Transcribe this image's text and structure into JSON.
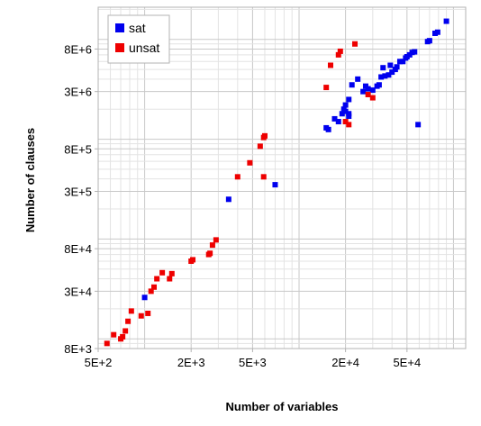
{
  "chart_data": {
    "type": "scatter",
    "xlabel": "Number of variables",
    "ylabel": "Number of clauses",
    "x_scale": "log",
    "y_scale": "log",
    "xlim": [
      500,
      120000
    ],
    "ylim": [
      8000,
      21000000
    ],
    "grid": true,
    "legend_position": "top-left",
    "x_ticks": [
      {
        "value": 500,
        "label": "5E+2"
      },
      {
        "value": 2000,
        "label": "2E+3"
      },
      {
        "value": 5000,
        "label": "5E+3"
      },
      {
        "value": 20000,
        "label": "2E+4"
      },
      {
        "value": 50000,
        "label": "5E+4"
      }
    ],
    "y_ticks": [
      {
        "value": 8000,
        "label": "8E+3"
      },
      {
        "value": 30000,
        "label": "3E+4"
      },
      {
        "value": 80000,
        "label": "8E+4"
      },
      {
        "value": 300000,
        "label": "3E+5"
      },
      {
        "value": 800000,
        "label": "8E+5"
      },
      {
        "value": 3000000,
        "label": "3E+6"
      },
      {
        "value": 8000000,
        "label": "8E+6"
      }
    ],
    "series": [
      {
        "name": "sat",
        "color": "#0000ee",
        "points": [
          [
            1000,
            26000
          ],
          [
            3500,
            250000
          ],
          [
            7000,
            350000
          ],
          [
            15000,
            1300000
          ],
          [
            15500,
            1250000
          ],
          [
            17000,
            1600000
          ],
          [
            18000,
            1500000
          ],
          [
            19000,
            1800000
          ],
          [
            19500,
            2000000
          ],
          [
            20000,
            2200000
          ],
          [
            20000,
            1900000
          ],
          [
            21000,
            1800000
          ],
          [
            21000,
            1700000
          ],
          [
            21000,
            2500000
          ],
          [
            22000,
            3500000
          ],
          [
            24000,
            4000000
          ],
          [
            26000,
            3000000
          ],
          [
            27000,
            3400000
          ],
          [
            28000,
            3200000
          ],
          [
            30000,
            3100000
          ],
          [
            32000,
            3400000
          ],
          [
            33000,
            3500000
          ],
          [
            34000,
            4200000
          ],
          [
            35000,
            5200000
          ],
          [
            36000,
            4300000
          ],
          [
            38000,
            4400000
          ],
          [
            39000,
            5500000
          ],
          [
            40000,
            4700000
          ],
          [
            42000,
            5000000
          ],
          [
            43000,
            5300000
          ],
          [
            45000,
            6000000
          ],
          [
            47000,
            6000000
          ],
          [
            49000,
            6500000
          ],
          [
            50000,
            6700000
          ],
          [
            52000,
            7000000
          ],
          [
            54000,
            7400000
          ],
          [
            56000,
            7500000
          ],
          [
            59000,
            1400000
          ],
          [
            68000,
            9500000
          ],
          [
            70000,
            9700000
          ],
          [
            76000,
            11500000
          ],
          [
            79000,
            11800000
          ],
          [
            90000,
            15200000
          ]
        ]
      },
      {
        "name": "unsat",
        "color": "#ee0000",
        "points": [
          [
            570,
            9000
          ],
          [
            630,
            11000
          ],
          [
            700,
            10000
          ],
          [
            720,
            10500
          ],
          [
            750,
            12000
          ],
          [
            780,
            15000
          ],
          [
            820,
            19000
          ],
          [
            950,
            17000
          ],
          [
            1050,
            18000
          ],
          [
            1100,
            30000
          ],
          [
            1150,
            33000
          ],
          [
            1200,
            40000
          ],
          [
            1300,
            46000
          ],
          [
            1450,
            40000
          ],
          [
            1500,
            45000
          ],
          [
            2000,
            60000
          ],
          [
            2050,
            62000
          ],
          [
            2600,
            70000
          ],
          [
            2650,
            72000
          ],
          [
            2750,
            87000
          ],
          [
            2900,
            98000
          ],
          [
            4000,
            420000
          ],
          [
            4800,
            580000
          ],
          [
            5600,
            850000
          ],
          [
            5900,
            1040000
          ],
          [
            6000,
            1080000
          ],
          [
            5900,
            420000
          ],
          [
            15000,
            3300000
          ],
          [
            16000,
            5500000
          ],
          [
            18000,
            7000000
          ],
          [
            18500,
            7600000
          ],
          [
            20000,
            1500000
          ],
          [
            21000,
            1400000
          ],
          [
            23000,
            9000000
          ],
          [
            28000,
            2800000
          ],
          [
            30000,
            2600000
          ]
        ]
      }
    ]
  }
}
